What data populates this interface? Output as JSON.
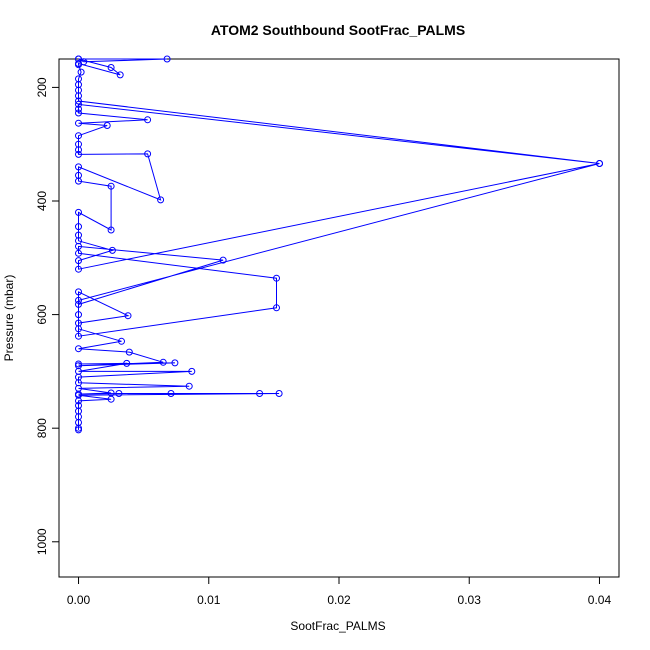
{
  "chart_data": {
    "type": "line",
    "title": "ATOM2 Southbound SootFrac_PALMS",
    "xlabel": "SootFrac_PALMS",
    "ylabel": "Pressure (mbar)",
    "xlim": [
      -0.0015,
      0.0415
    ],
    "ylim": [
      1062,
      150
    ],
    "y_reversed": true,
    "xticks": [
      0,
      0.01,
      0.02,
      0.03,
      0.04
    ],
    "xtick_labels": [
      "0.00",
      "0.01",
      "0.02",
      "0.03",
      "0.04"
    ],
    "yticks": [
      200,
      400,
      600,
      800,
      1000
    ],
    "ytick_labels": [
      "200",
      "400",
      "600",
      "800",
      "1000"
    ],
    "grid": false,
    "color": "#0000ff",
    "marker": "open-circle",
    "series": [
      {
        "points": [
          [
            0,
            150
          ],
          [
            0.0004,
            155
          ],
          [
            0.0068,
            150
          ],
          [
            0,
            150
          ],
          [
            0.0025,
            165
          ],
          [
            0.0032,
            178
          ],
          [
            0,
            158
          ],
          [
            0,
            160
          ],
          [
            0.0002,
            173
          ],
          [
            0,
            185
          ],
          [
            0,
            195
          ],
          [
            0,
            205
          ],
          [
            0,
            215
          ],
          [
            0,
            224
          ],
          [
            0.04,
            334
          ],
          [
            0,
            230
          ],
          [
            0,
            238
          ],
          [
            0,
            245
          ],
          [
            0.0053,
            257
          ],
          [
            0,
            263
          ],
          [
            0.0022,
            267
          ],
          [
            0,
            285
          ],
          [
            0,
            300
          ],
          [
            0,
            310
          ],
          [
            0,
            318
          ],
          [
            0.0053,
            317
          ],
          [
            0.0063,
            398
          ],
          [
            0,
            340
          ],
          [
            0,
            355
          ],
          [
            0,
            365
          ],
          [
            0.0025,
            374
          ],
          [
            0.0025,
            451
          ],
          [
            0,
            420
          ],
          [
            0,
            445
          ],
          [
            0,
            460
          ],
          [
            0,
            470
          ],
          [
            0.0026,
            487
          ],
          [
            0,
            505
          ],
          [
            0,
            520
          ],
          [
            0.04,
            334
          ],
          [
            0,
            575
          ],
          [
            0,
            582
          ],
          [
            0.0111,
            504
          ],
          [
            0,
            480
          ],
          [
            0,
            492
          ],
          [
            0.0152,
            536
          ],
          [
            0.0152,
            588
          ],
          [
            0,
            638
          ],
          [
            0,
            600
          ],
          [
            0,
            560
          ],
          [
            0.0038,
            602
          ],
          [
            0,
            615
          ],
          [
            0,
            625
          ],
          [
            0.0033,
            647
          ],
          [
            0,
            660
          ],
          [
            0.0039,
            666
          ],
          [
            0.0065,
            684
          ],
          [
            0,
            690
          ],
          [
            0.0074,
            685
          ],
          [
            0,
            687
          ],
          [
            0.0037,
            686
          ],
          [
            0,
            700
          ],
          [
            0.0087,
            700
          ],
          [
            0,
            710
          ],
          [
            0,
            720
          ],
          [
            0.0085,
            726
          ],
          [
            0,
            730
          ],
          [
            0.0025,
            738
          ],
          [
            0,
            740
          ],
          [
            0.0031,
            739
          ],
          [
            0.0071,
            739
          ],
          [
            0.0139,
            739
          ],
          [
            0.0154,
            739
          ],
          [
            0,
            742
          ],
          [
            0.0025,
            749
          ],
          [
            0,
            752
          ],
          [
            0,
            760
          ],
          [
            0,
            770
          ],
          [
            0,
            780
          ],
          [
            0,
            790
          ],
          [
            0,
            800
          ],
          [
            0,
            803
          ]
        ]
      }
    ]
  }
}
